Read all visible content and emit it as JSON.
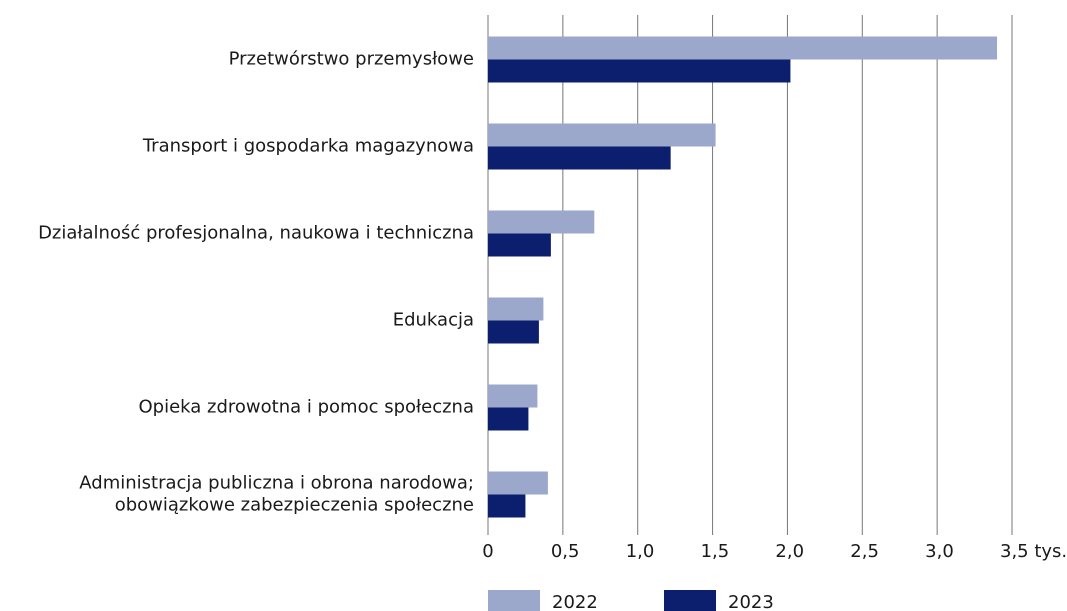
{
  "chart_data": {
    "type": "bar",
    "orientation": "horizontal",
    "categories": [
      "Przetwórstwo przemysłowe",
      "Transport i gospodarka magazynowa",
      "Działalność profesjonalna, naukowa i techniczna",
      "Edukacja",
      "Opieka zdrowotna i pomoc społeczna",
      [
        "Administracja publiczna i obrona narodowa;",
        "obowiązkowe zabezpieczenia społeczne"
      ]
    ],
    "series": [
      {
        "name": "2022",
        "color": "#9ba7cb",
        "values": [
          3.4,
          1.52,
          0.71,
          0.37,
          0.33,
          0.4
        ]
      },
      {
        "name": "2023",
        "color": "#0c1f6e",
        "values": [
          2.02,
          1.22,
          0.42,
          0.34,
          0.27,
          0.25
        ]
      }
    ],
    "xlim": [
      0,
      3.5
    ],
    "xticks": [
      0,
      {
        "value": 0.5,
        "label": "0,5"
      },
      {
        "value": 1.0,
        "label": "1,0"
      },
      {
        "value": 1.5,
        "label": "1,5"
      },
      {
        "value": 2.0,
        "label": "2,0"
      },
      {
        "value": 2.5,
        "label": "2,5"
      },
      {
        "value": 3.0,
        "label": "3,0"
      },
      {
        "value": 3.5,
        "label": "3,5 tys."
      }
    ],
    "grid": true,
    "legend": "bottom"
  }
}
